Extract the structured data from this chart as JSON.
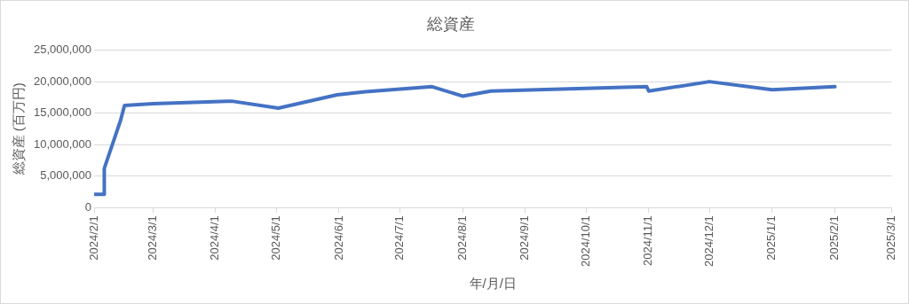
{
  "chart_data": {
    "type": "line",
    "title": "総資産",
    "xlabel": "年/月/日",
    "ylabel": "総資産 (百万円)",
    "x": [
      "2024-02-01",
      "2024-02-06",
      "2024-02-06",
      "2024-02-14",
      "2024-02-16",
      "2024-03-01",
      "2024-04-09",
      "2024-05-02",
      "2024-05-31",
      "2024-06-14",
      "2024-07-17",
      "2024-08-01",
      "2024-08-15",
      "2024-10-31",
      "2024-11-01",
      "2024-12-01",
      "2025-01-01",
      "2025-02-01"
    ],
    "series": [
      {
        "color": "#4472c4",
        "values": [
          2100000,
          2100000,
          6200000,
          13800000,
          16200000,
          16500000,
          16900000,
          15800000,
          17900000,
          18400000,
          19200000,
          17700000,
          18500000,
          19200000,
          18500000,
          20000000,
          18700000,
          19200000
        ]
      }
    ],
    "xlim": [
      "2024-02-01",
      "2025-03-01"
    ],
    "xticks": [
      {
        "value": "2024-02-01",
        "label": "2024/2/1"
      },
      {
        "value": "2024-03-01",
        "label": "2024/3/1"
      },
      {
        "value": "2024-04-01",
        "label": "2024/4/1"
      },
      {
        "value": "2024-05-01",
        "label": "2024/5/1"
      },
      {
        "value": "2024-06-01",
        "label": "2024/6/1"
      },
      {
        "value": "2024-07-01",
        "label": "2024/7/1"
      },
      {
        "value": "2024-08-01",
        "label": "2024/8/1"
      },
      {
        "value": "2024-09-01",
        "label": "2024/9/1"
      },
      {
        "value": "2024-10-01",
        "label": "2024/10/1"
      },
      {
        "value": "2024-11-01",
        "label": "2024/11/1"
      },
      {
        "value": "2024-12-01",
        "label": "2024/12/1"
      },
      {
        "value": "2025-01-01",
        "label": "2025/1/1"
      },
      {
        "value": "2025-02-01",
        "label": "2025/2/1"
      },
      {
        "value": "2025-03-01",
        "label": "2025/3/1"
      }
    ],
    "ylim": [
      0,
      25000000
    ],
    "yticks": [
      0,
      {
        "value": 5000000,
        "label": "5,000,000"
      },
      {
        "value": 10000000,
        "label": "10,000,000"
      },
      {
        "value": 15000000,
        "label": "15,000,000"
      },
      {
        "value": 20000000,
        "label": "20,000,000"
      },
      {
        "value": 25000000,
        "label": "25,000,000"
      }
    ],
    "grid": "y",
    "legend": false,
    "marker": "none",
    "line_style": "solid"
  }
}
